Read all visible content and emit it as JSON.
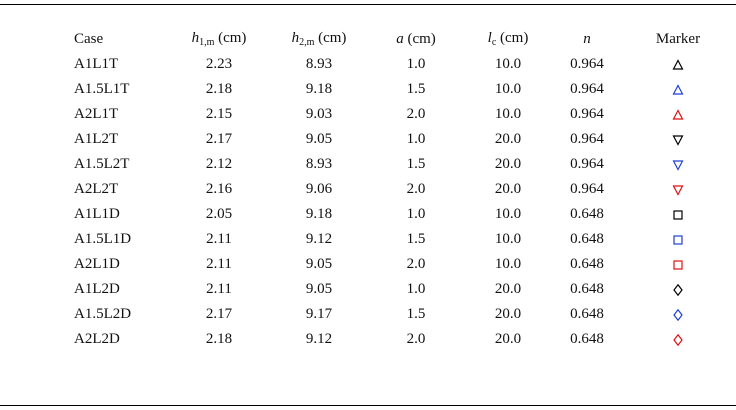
{
  "header": {
    "case": "Case",
    "h1": {
      "sym": "h",
      "sub": "1,m",
      "unit": " (cm)"
    },
    "h2": {
      "sym": "h",
      "sub": "2,m",
      "unit": " (cm)"
    },
    "a": {
      "sym": "a",
      "unit": " (cm)"
    },
    "lc": {
      "sym": "l",
      "sub": "c",
      "unit": " (cm)"
    },
    "n": {
      "sym": "n"
    },
    "marker": "Marker"
  },
  "colors": {
    "black": "#000000",
    "blue": "#1f3fd6",
    "red": "#e01010"
  },
  "rows": [
    {
      "case": "A1L1T",
      "h1": "2.23",
      "h2": "8.93",
      "a": "1.0",
      "lc": "10.0",
      "n": "0.964",
      "marker": "triangle-up",
      "color": "black"
    },
    {
      "case": "A1.5L1T",
      "h1": "2.18",
      "h2": "9.18",
      "a": "1.5",
      "lc": "10.0",
      "n": "0.964",
      "marker": "triangle-up",
      "color": "blue"
    },
    {
      "case": "A2L1T",
      "h1": "2.15",
      "h2": "9.03",
      "a": "2.0",
      "lc": "10.0",
      "n": "0.964",
      "marker": "triangle-up",
      "color": "red"
    },
    {
      "case": "A1L2T",
      "h1": "2.17",
      "h2": "9.05",
      "a": "1.0",
      "lc": "20.0",
      "n": "0.964",
      "marker": "triangle-down",
      "color": "black"
    },
    {
      "case": "A1.5L2T",
      "h1": "2.12",
      "h2": "8.93",
      "a": "1.5",
      "lc": "20.0",
      "n": "0.964",
      "marker": "triangle-down",
      "color": "blue"
    },
    {
      "case": "A2L2T",
      "h1": "2.16",
      "h2": "9.06",
      "a": "2.0",
      "lc": "20.0",
      "n": "0.964",
      "marker": "triangle-down",
      "color": "red"
    },
    {
      "case": "A1L1D",
      "h1": "2.05",
      "h2": "9.18",
      "a": "1.0",
      "lc": "10.0",
      "n": "0.648",
      "marker": "square",
      "color": "black"
    },
    {
      "case": "A1.5L1D",
      "h1": "2.11",
      "h2": "9.12",
      "a": "1.5",
      "lc": "10.0",
      "n": "0.648",
      "marker": "square",
      "color": "blue"
    },
    {
      "case": "A2L1D",
      "h1": "2.11",
      "h2": "9.05",
      "a": "2.0",
      "lc": "10.0",
      "n": "0.648",
      "marker": "square",
      "color": "red"
    },
    {
      "case": "A1L2D",
      "h1": "2.11",
      "h2": "9.05",
      "a": "1.0",
      "lc": "20.0",
      "n": "0.648",
      "marker": "diamond",
      "color": "black"
    },
    {
      "case": "A1.5L2D",
      "h1": "2.17",
      "h2": "9.17",
      "a": "1.5",
      "lc": "20.0",
      "n": "0.648",
      "marker": "diamond",
      "color": "blue"
    },
    {
      "case": "A2L2D",
      "h1": "2.18",
      "h2": "9.12",
      "a": "2.0",
      "lc": "20.0",
      "n": "0.648",
      "marker": "diamond",
      "color": "red"
    }
  ]
}
